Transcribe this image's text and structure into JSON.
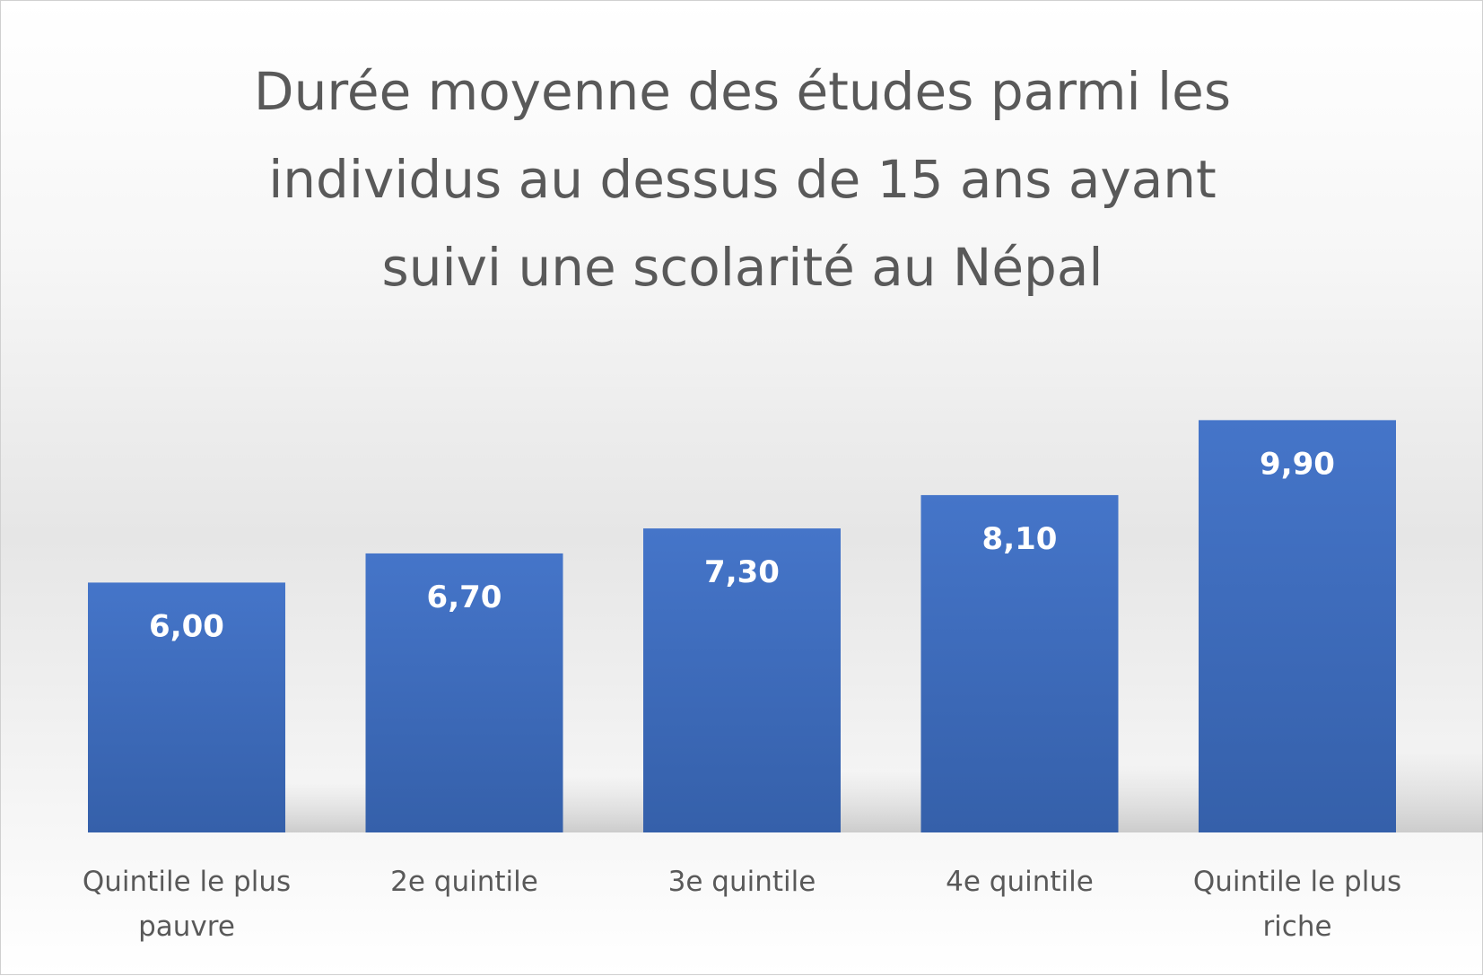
{
  "chart_data": {
    "type": "bar",
    "title": "Durée moyenne des études parmi les\nindividus au dessus de 15 ans ayant\nsuivi une scolarité au Népal",
    "categories": [
      [
        "Quintile le plus",
        "pauvre"
      ],
      [
        "2e quintile"
      ],
      [
        "3e quintile"
      ],
      [
        "4e quintile"
      ],
      [
        "Quintile le plus",
        "riche"
      ]
    ],
    "values": [
      6.0,
      6.7,
      7.3,
      8.1,
      9.9
    ],
    "data_labels": [
      "6,00",
      "6,70",
      "7,30",
      "8,10",
      "9,90"
    ],
    "ylim": [
      0,
      14
    ],
    "bar_color": "#4472c4",
    "grid": false,
    "legend": "none"
  }
}
